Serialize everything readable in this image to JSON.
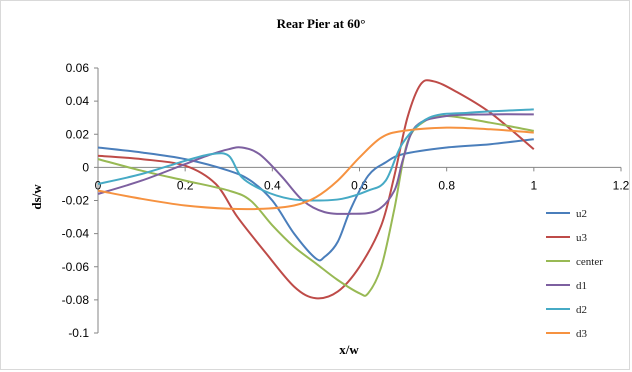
{
  "chart_data": {
    "type": "line",
    "title": "Rear Pier  at 60°",
    "xlabel": "x/w",
    "ylabel": "ds/w",
    "xlim": [
      0,
      1.2
    ],
    "ylim": [
      -0.1,
      0.06
    ],
    "xticks": [
      "0",
      "0.2",
      "0.4",
      "0.6",
      "0.8",
      "1",
      "1.2"
    ],
    "yticks": [
      "0.06",
      "0.04",
      "0.02",
      "0",
      "-0.02",
      "-0.04",
      "-0.06",
      "-0.08",
      "-0.1"
    ],
    "xtick_values": [
      0,
      0.2,
      0.4,
      0.6,
      0.8,
      1.0,
      1.2
    ],
    "ytick_values": [
      0.06,
      0.04,
      0.02,
      0,
      -0.02,
      -0.04,
      -0.06,
      -0.08,
      -0.1
    ],
    "grid": false,
    "legend_position": "right",
    "series": [
      {
        "name": "u2",
        "color": "#4a7ebb",
        "points": [
          [
            0,
            0.012
          ],
          [
            0.1,
            0.009
          ],
          [
            0.2,
            0.005
          ],
          [
            0.3,
            -0.002
          ],
          [
            0.35,
            -0.008
          ],
          [
            0.4,
            -0.02
          ],
          [
            0.45,
            -0.04
          ],
          [
            0.5,
            -0.055
          ],
          [
            0.52,
            -0.054
          ],
          [
            0.55,
            -0.045
          ],
          [
            0.58,
            -0.025
          ],
          [
            0.62,
            -0.005
          ],
          [
            0.66,
            0.003
          ],
          [
            0.7,
            0.008
          ],
          [
            0.8,
            0.012
          ],
          [
            0.9,
            0.014
          ],
          [
            1.0,
            0.017
          ]
        ]
      },
      {
        "name": "u3",
        "color": "#be4b48",
        "points": [
          [
            0,
            0.007
          ],
          [
            0.1,
            0.005
          ],
          [
            0.2,
            0.001
          ],
          [
            0.27,
            -0.01
          ],
          [
            0.32,
            -0.03
          ],
          [
            0.38,
            -0.05
          ],
          [
            0.45,
            -0.072
          ],
          [
            0.5,
            -0.079
          ],
          [
            0.55,
            -0.075
          ],
          [
            0.6,
            -0.06
          ],
          [
            0.65,
            -0.035
          ],
          [
            0.68,
            -0.005
          ],
          [
            0.71,
            0.03
          ],
          [
            0.74,
            0.05
          ],
          [
            0.77,
            0.052
          ],
          [
            0.82,
            0.046
          ],
          [
            0.9,
            0.033
          ],
          [
            1.0,
            0.011
          ]
        ]
      },
      {
        "name": "center",
        "color": "#98b954",
        "points": [
          [
            0,
            0.005
          ],
          [
            0.1,
            -0.002
          ],
          [
            0.2,
            -0.008
          ],
          [
            0.3,
            -0.014
          ],
          [
            0.35,
            -0.02
          ],
          [
            0.4,
            -0.035
          ],
          [
            0.45,
            -0.048
          ],
          [
            0.5,
            -0.058
          ],
          [
            0.55,
            -0.068
          ],
          [
            0.6,
            -0.076
          ],
          [
            0.62,
            -0.076
          ],
          [
            0.65,
            -0.06
          ],
          [
            0.68,
            -0.025
          ],
          [
            0.71,
            0.015
          ],
          [
            0.75,
            0.028
          ],
          [
            0.8,
            0.031
          ],
          [
            0.9,
            0.027
          ],
          [
            1.0,
            0.022
          ]
        ]
      },
      {
        "name": "d1",
        "color": "#7d60a0",
        "points": [
          [
            0,
            -0.016
          ],
          [
            0.1,
            -0.008
          ],
          [
            0.2,
            0.002
          ],
          [
            0.25,
            0.007
          ],
          [
            0.3,
            0.011
          ],
          [
            0.33,
            0.012
          ],
          [
            0.37,
            0.008
          ],
          [
            0.42,
            -0.005
          ],
          [
            0.47,
            -0.02
          ],
          [
            0.52,
            -0.027
          ],
          [
            0.58,
            -0.028
          ],
          [
            0.64,
            -0.026
          ],
          [
            0.68,
            -0.014
          ],
          [
            0.7,
            0.005
          ],
          [
            0.73,
            0.025
          ],
          [
            0.8,
            0.031
          ],
          [
            0.9,
            0.032
          ],
          [
            1.0,
            0.032
          ]
        ]
      },
      {
        "name": "d2",
        "color": "#46aac5",
        "points": [
          [
            0,
            -0.01
          ],
          [
            0.1,
            -0.004
          ],
          [
            0.2,
            0.004
          ],
          [
            0.26,
            0.008
          ],
          [
            0.3,
            0.007
          ],
          [
            0.33,
            -0.006
          ],
          [
            0.38,
            -0.014
          ],
          [
            0.44,
            -0.019
          ],
          [
            0.5,
            -0.02
          ],
          [
            0.56,
            -0.019
          ],
          [
            0.62,
            -0.014
          ],
          [
            0.66,
            -0.008
          ],
          [
            0.7,
            0.015
          ],
          [
            0.76,
            0.03
          ],
          [
            0.85,
            0.033
          ],
          [
            1.0,
            0.035
          ]
        ]
      },
      {
        "name": "d3",
        "color": "#f69240",
        "points": [
          [
            0,
            -0.014
          ],
          [
            0.1,
            -0.019
          ],
          [
            0.2,
            -0.023
          ],
          [
            0.3,
            -0.025
          ],
          [
            0.38,
            -0.025
          ],
          [
            0.45,
            -0.023
          ],
          [
            0.5,
            -0.018
          ],
          [
            0.55,
            -0.008
          ],
          [
            0.6,
            0.006
          ],
          [
            0.65,
            0.018
          ],
          [
            0.7,
            0.022
          ],
          [
            0.8,
            0.024
          ],
          [
            0.9,
            0.023
          ],
          [
            1.0,
            0.021
          ]
        ]
      }
    ]
  }
}
